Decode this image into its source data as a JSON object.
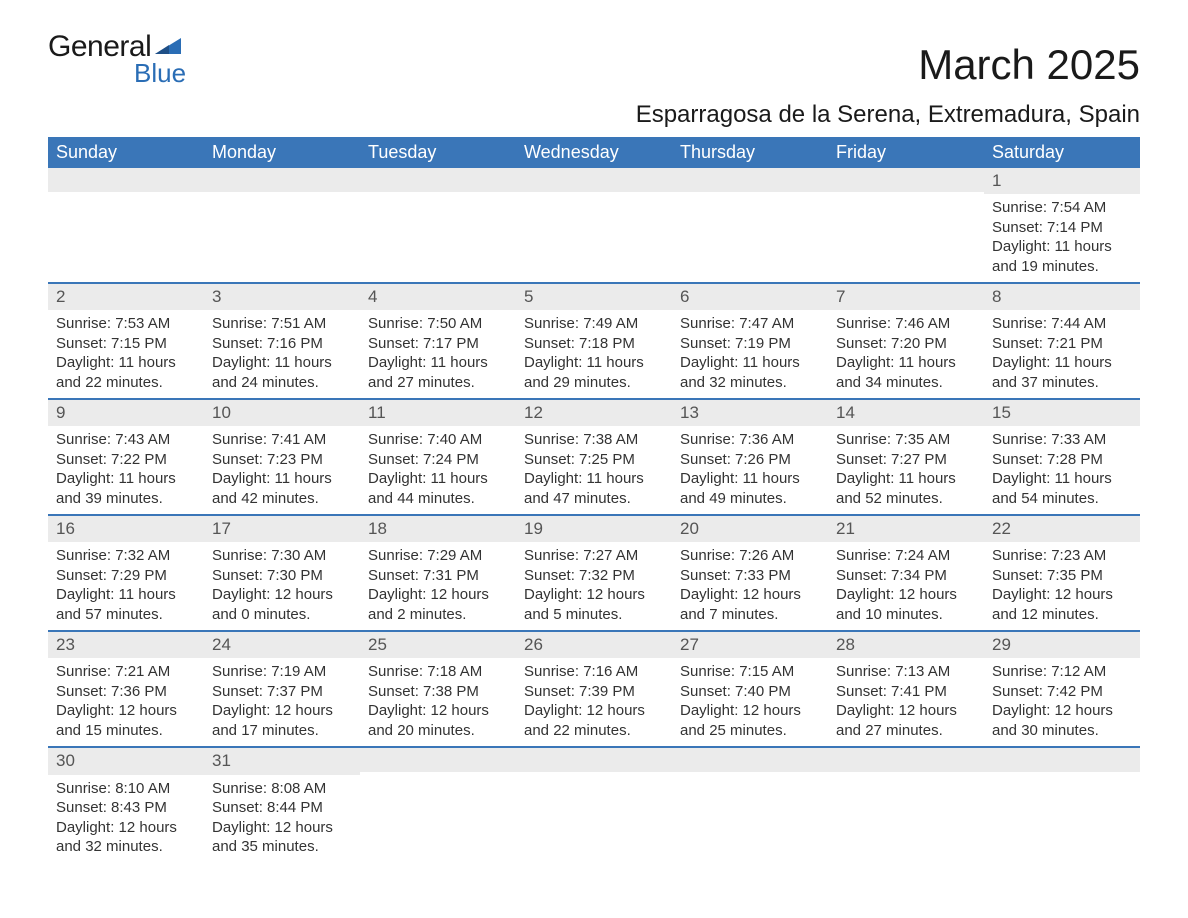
{
  "brand": {
    "word1": "General",
    "word2": "Blue",
    "text_color": "#1a1a1a",
    "accent_color": "#2a6db5"
  },
  "title": {
    "month": "March 2025",
    "location": "Esparragosa de la Serena, Extremadura, Spain",
    "month_fontsize": 42,
    "location_fontsize": 24
  },
  "styling": {
    "header_bg": "#3a76b8",
    "header_text": "#ffffff",
    "daynum_bg": "#ebebeb",
    "daynum_text": "#555555",
    "body_text": "#333333",
    "row_separator": "#3a76b8",
    "page_bg": "#ffffff",
    "body_fontsize": 15,
    "header_fontsize": 18
  },
  "weekdays": [
    "Sunday",
    "Monday",
    "Tuesday",
    "Wednesday",
    "Thursday",
    "Friday",
    "Saturday"
  ],
  "weeks": [
    [
      null,
      null,
      null,
      null,
      null,
      null,
      {
        "d": "1",
        "sr": "Sunrise: 7:54 AM",
        "ss": "Sunset: 7:14 PM",
        "dl": "Daylight: 11 hours and 19 minutes."
      }
    ],
    [
      {
        "d": "2",
        "sr": "Sunrise: 7:53 AM",
        "ss": "Sunset: 7:15 PM",
        "dl": "Daylight: 11 hours and 22 minutes."
      },
      {
        "d": "3",
        "sr": "Sunrise: 7:51 AM",
        "ss": "Sunset: 7:16 PM",
        "dl": "Daylight: 11 hours and 24 minutes."
      },
      {
        "d": "4",
        "sr": "Sunrise: 7:50 AM",
        "ss": "Sunset: 7:17 PM",
        "dl": "Daylight: 11 hours and 27 minutes."
      },
      {
        "d": "5",
        "sr": "Sunrise: 7:49 AM",
        "ss": "Sunset: 7:18 PM",
        "dl": "Daylight: 11 hours and 29 minutes."
      },
      {
        "d": "6",
        "sr": "Sunrise: 7:47 AM",
        "ss": "Sunset: 7:19 PM",
        "dl": "Daylight: 11 hours and 32 minutes."
      },
      {
        "d": "7",
        "sr": "Sunrise: 7:46 AM",
        "ss": "Sunset: 7:20 PM",
        "dl": "Daylight: 11 hours and 34 minutes."
      },
      {
        "d": "8",
        "sr": "Sunrise: 7:44 AM",
        "ss": "Sunset: 7:21 PM",
        "dl": "Daylight: 11 hours and 37 minutes."
      }
    ],
    [
      {
        "d": "9",
        "sr": "Sunrise: 7:43 AM",
        "ss": "Sunset: 7:22 PM",
        "dl": "Daylight: 11 hours and 39 minutes."
      },
      {
        "d": "10",
        "sr": "Sunrise: 7:41 AM",
        "ss": "Sunset: 7:23 PM",
        "dl": "Daylight: 11 hours and 42 minutes."
      },
      {
        "d": "11",
        "sr": "Sunrise: 7:40 AM",
        "ss": "Sunset: 7:24 PM",
        "dl": "Daylight: 11 hours and 44 minutes."
      },
      {
        "d": "12",
        "sr": "Sunrise: 7:38 AM",
        "ss": "Sunset: 7:25 PM",
        "dl": "Daylight: 11 hours and 47 minutes."
      },
      {
        "d": "13",
        "sr": "Sunrise: 7:36 AM",
        "ss": "Sunset: 7:26 PM",
        "dl": "Daylight: 11 hours and 49 minutes."
      },
      {
        "d": "14",
        "sr": "Sunrise: 7:35 AM",
        "ss": "Sunset: 7:27 PM",
        "dl": "Daylight: 11 hours and 52 minutes."
      },
      {
        "d": "15",
        "sr": "Sunrise: 7:33 AM",
        "ss": "Sunset: 7:28 PM",
        "dl": "Daylight: 11 hours and 54 minutes."
      }
    ],
    [
      {
        "d": "16",
        "sr": "Sunrise: 7:32 AM",
        "ss": "Sunset: 7:29 PM",
        "dl": "Daylight: 11 hours and 57 minutes."
      },
      {
        "d": "17",
        "sr": "Sunrise: 7:30 AM",
        "ss": "Sunset: 7:30 PM",
        "dl": "Daylight: 12 hours and 0 minutes."
      },
      {
        "d": "18",
        "sr": "Sunrise: 7:29 AM",
        "ss": "Sunset: 7:31 PM",
        "dl": "Daylight: 12 hours and 2 minutes."
      },
      {
        "d": "19",
        "sr": "Sunrise: 7:27 AM",
        "ss": "Sunset: 7:32 PM",
        "dl": "Daylight: 12 hours and 5 minutes."
      },
      {
        "d": "20",
        "sr": "Sunrise: 7:26 AM",
        "ss": "Sunset: 7:33 PM",
        "dl": "Daylight: 12 hours and 7 minutes."
      },
      {
        "d": "21",
        "sr": "Sunrise: 7:24 AM",
        "ss": "Sunset: 7:34 PM",
        "dl": "Daylight: 12 hours and 10 minutes."
      },
      {
        "d": "22",
        "sr": "Sunrise: 7:23 AM",
        "ss": "Sunset: 7:35 PM",
        "dl": "Daylight: 12 hours and 12 minutes."
      }
    ],
    [
      {
        "d": "23",
        "sr": "Sunrise: 7:21 AM",
        "ss": "Sunset: 7:36 PM",
        "dl": "Daylight: 12 hours and 15 minutes."
      },
      {
        "d": "24",
        "sr": "Sunrise: 7:19 AM",
        "ss": "Sunset: 7:37 PM",
        "dl": "Daylight: 12 hours and 17 minutes."
      },
      {
        "d": "25",
        "sr": "Sunrise: 7:18 AM",
        "ss": "Sunset: 7:38 PM",
        "dl": "Daylight: 12 hours and 20 minutes."
      },
      {
        "d": "26",
        "sr": "Sunrise: 7:16 AM",
        "ss": "Sunset: 7:39 PM",
        "dl": "Daylight: 12 hours and 22 minutes."
      },
      {
        "d": "27",
        "sr": "Sunrise: 7:15 AM",
        "ss": "Sunset: 7:40 PM",
        "dl": "Daylight: 12 hours and 25 minutes."
      },
      {
        "d": "28",
        "sr": "Sunrise: 7:13 AM",
        "ss": "Sunset: 7:41 PM",
        "dl": "Daylight: 12 hours and 27 minutes."
      },
      {
        "d": "29",
        "sr": "Sunrise: 7:12 AM",
        "ss": "Sunset: 7:42 PM",
        "dl": "Daylight: 12 hours and 30 minutes."
      }
    ],
    [
      {
        "d": "30",
        "sr": "Sunrise: 8:10 AM",
        "ss": "Sunset: 8:43 PM",
        "dl": "Daylight: 12 hours and 32 minutes."
      },
      {
        "d": "31",
        "sr": "Sunrise: 8:08 AM",
        "ss": "Sunset: 8:44 PM",
        "dl": "Daylight: 12 hours and 35 minutes."
      },
      null,
      null,
      null,
      null,
      null
    ]
  ]
}
